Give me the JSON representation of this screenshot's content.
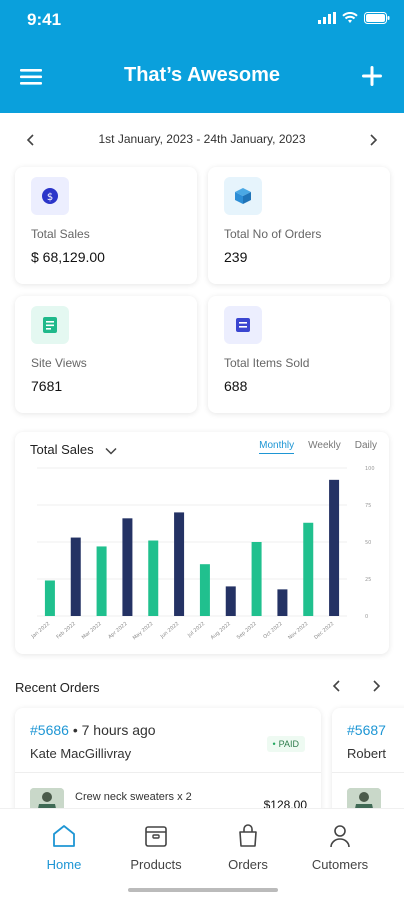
{
  "status_bar": {
    "time": "9:41"
  },
  "header": {
    "title": "That’s Awesome"
  },
  "date_range": {
    "label": "1st January, 2023 - 24th January, 2023"
  },
  "stats": [
    {
      "label": "Total Sales",
      "value": "$ 68,129.00",
      "icon": "dollar-icon",
      "color": "#2b35c9",
      "bg": "#eceefe"
    },
    {
      "label": "Total No of Orders",
      "value": "239",
      "icon": "box-icon",
      "color": "#2d8ed6",
      "bg": "#e6f4fc"
    },
    {
      "label": "Site Views",
      "value": "7681",
      "icon": "document-icon",
      "color": "#20b98b",
      "bg": "#e4f8f1"
    },
    {
      "label": "Total Items Sold",
      "value": "688",
      "icon": "list-icon",
      "color": "#3a45d0",
      "bg": "#eceefe"
    }
  ],
  "chart": {
    "title": "Total Sales",
    "tabs": [
      "Monthly",
      "Weekly",
      "Daily"
    ],
    "active_tab": "Monthly",
    "colors": {
      "green": "#20c08e",
      "navy": "#243264"
    }
  },
  "chart_data": {
    "type": "bar",
    "categories": [
      "Jan 2022",
      "Feb 2022",
      "Mar 2022",
      "Apr 2022",
      "May 2022",
      "Jun 2022",
      "Jul 2022",
      "Aug 2022",
      "Sep 2022",
      "Oct 2022",
      "Nov 2022",
      "Dec 2022"
    ],
    "values": [
      24,
      53,
      47,
      66,
      51,
      70,
      35,
      20,
      50,
      18,
      63,
      92
    ],
    "title": "Total Sales",
    "ylim": [
      0,
      100
    ],
    "yticks": [
      "0",
      "25",
      "50",
      "75",
      "100"
    ],
    "grid": true
  },
  "recent_orders": {
    "title": "Recent Orders",
    "orders": [
      {
        "id": "#5686",
        "time": "7 hours ago",
        "customer": "Kate MacGillivray",
        "status": "PAID",
        "item": "Crew neck sweaters x 2",
        "price": "$128.00"
      },
      {
        "id": "#5687",
        "customer": "Robert"
      }
    ]
  },
  "tabbar": {
    "items": [
      {
        "label": "Home",
        "icon": "home-icon",
        "active": true
      },
      {
        "label": "Products",
        "icon": "products-icon",
        "active": false
      },
      {
        "label": "Orders",
        "icon": "shopping-bag-icon",
        "active": false
      },
      {
        "label": "Cutomers",
        "icon": "user-icon",
        "active": false
      }
    ]
  }
}
